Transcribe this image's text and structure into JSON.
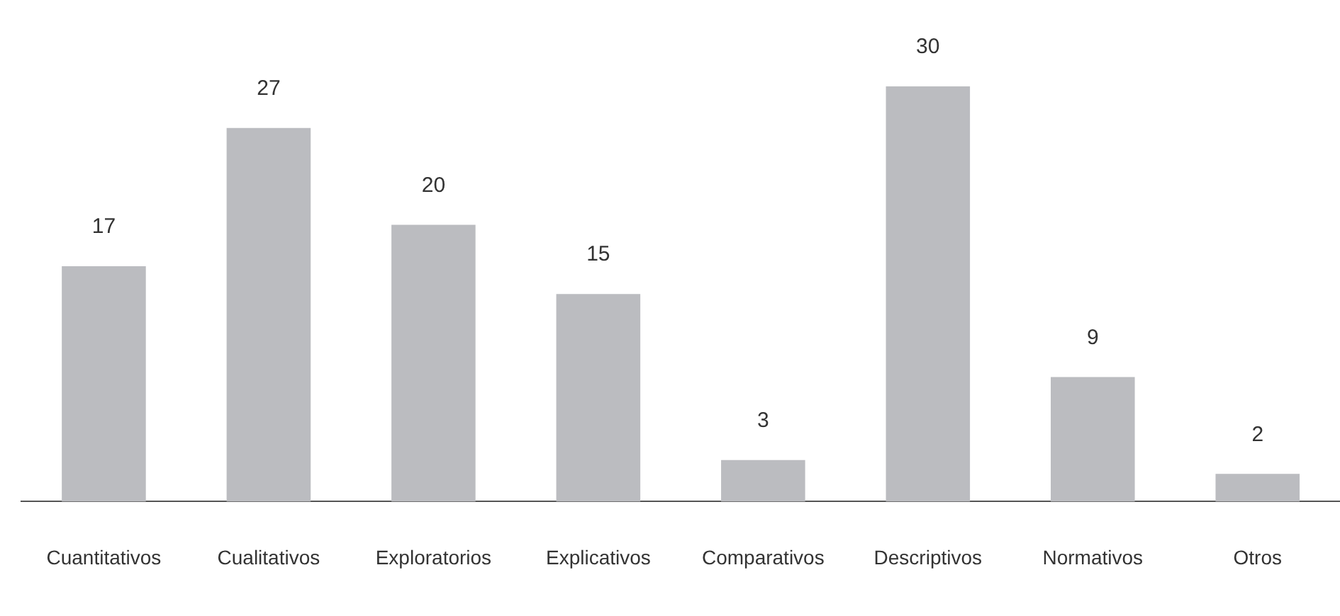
{
  "chart_data": {
    "type": "bar",
    "categories": [
      "Cuantitativos",
      "Cualitativos",
      "Exploratorios",
      "Explicativos",
      "Comparativos",
      "Descriptivos",
      "Normativos",
      "Otros"
    ],
    "values": [
      17,
      27,
      20,
      15,
      3,
      30,
      9,
      2
    ],
    "color": "#bbbcc0",
    "data_labels": true
  }
}
